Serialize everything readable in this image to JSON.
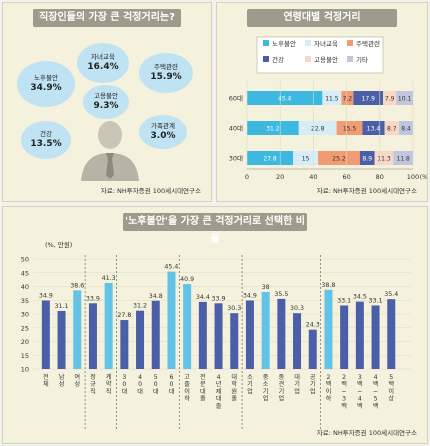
{
  "panel_worry": {
    "title": "직장인들의 가장 큰 걱정거리는?",
    "source": "자료: NH투자증권 100세시대연구소",
    "bubbles": [
      {
        "label": "노후불안",
        "value": "34.9%"
      },
      {
        "label": "자녀교육",
        "value": "16.4%"
      },
      {
        "label": "주택관련",
        "value": "15.9%"
      },
      {
        "label": "고용불안",
        "value": "9.3%"
      },
      {
        "label": "건강",
        "value": "13.5%"
      },
      {
        "label": "가족관계",
        "value": "3.0%"
      }
    ]
  },
  "panel_age": {
    "title": "연령대별 걱정거리",
    "source": "자료: NH투자증권 100세시대연구소",
    "legend": [
      "노후불안",
      "자녀교육",
      "주택관련",
      "건강",
      "고용불안",
      "기타"
    ],
    "colors": [
      "#3db8e0",
      "#d6edf7",
      "#f29a71",
      "#4a5fa8",
      "#f7d7c6",
      "#bfc6de"
    ],
    "x_unit": "(%)",
    "x_ticks": [
      "0",
      "20",
      "40",
      "60",
      "80",
      "100"
    ]
  },
  "panel_pension": {
    "title": "'노후불안'을 가장 큰 걱정거리로 선택한 비율",
    "unit": "(%, 만원)",
    "source": "자료: NH투자증권 100세시대연구소",
    "y_ticks": [
      "10",
      "15",
      "20",
      "25",
      "30",
      "35",
      "40",
      "45",
      "50"
    ]
  },
  "chart_data": [
    {
      "type": "bar",
      "orientation": "horizontal-stacked",
      "categories": [
        "60대",
        "40대",
        "30대"
      ],
      "series": [
        {
          "name": "노후불안",
          "values": [
            45.4,
            31.2,
            27.8
          ]
        },
        {
          "name": "자녀교육",
          "values": [
            11.5,
            22.8,
            15.0
          ]
        },
        {
          "name": "주택관련",
          "values": [
            7.2,
            15.5,
            25.2
          ]
        },
        {
          "name": "건강",
          "values": [
            17.9,
            13.4,
            8.9
          ]
        },
        {
          "name": "고용불안",
          "values": [
            7.9,
            8.7,
            11.3
          ]
        },
        {
          "name": "기타",
          "values": [
            10.1,
            8.4,
            11.8
          ]
        }
      ],
      "xlim": [
        0,
        100
      ]
    },
    {
      "type": "bar",
      "categories": [
        "전체",
        "남성",
        "여성",
        "정규직",
        "계약직",
        "30대",
        "40대",
        "50대",
        "60대",
        "고졸이하",
        "전문대졸",
        "4년제대졸",
        "대학원졸",
        "소기업",
        "중소기업",
        "중견기업",
        "대기업",
        "공기업",
        "2백이하",
        "2백~3백",
        "3백~4백",
        "4백~5백",
        "5백이상"
      ],
      "values": [
        34.9,
        31.1,
        38.6,
        33.9,
        41.3,
        27.8,
        31.2,
        34.8,
        45.4,
        40.9,
        34.4,
        33.9,
        30.3,
        34.9,
        38.0,
        35.5,
        30.3,
        24.3,
        38.8,
        33.1,
        34.5,
        33.1,
        35.4
      ],
      "colors": [
        "#4a5fa8",
        "#4a5fa8",
        "#63c3e6",
        "#4a5fa8",
        "#63c3e6",
        "#4a5fa8",
        "#4a5fa8",
        "#4a5fa8",
        "#63c3e6",
        "#63c3e6",
        "#4a5fa8",
        "#4a5fa8",
        "#4a5fa8",
        "#4a5fa8",
        "#63c3e6",
        "#4a5fa8",
        "#4a5fa8",
        "#4a5fa8",
        "#63c3e6",
        "#4a5fa8",
        "#4a5fa8",
        "#4a5fa8",
        "#4a5fa8"
      ],
      "ylim": [
        10,
        50
      ],
      "groups": [
        [
          0,
          2
        ],
        [
          3,
          4
        ],
        [
          5,
          8
        ],
        [
          9,
          12
        ],
        [
          13,
          17
        ],
        [
          18,
          22
        ]
      ]
    }
  ]
}
